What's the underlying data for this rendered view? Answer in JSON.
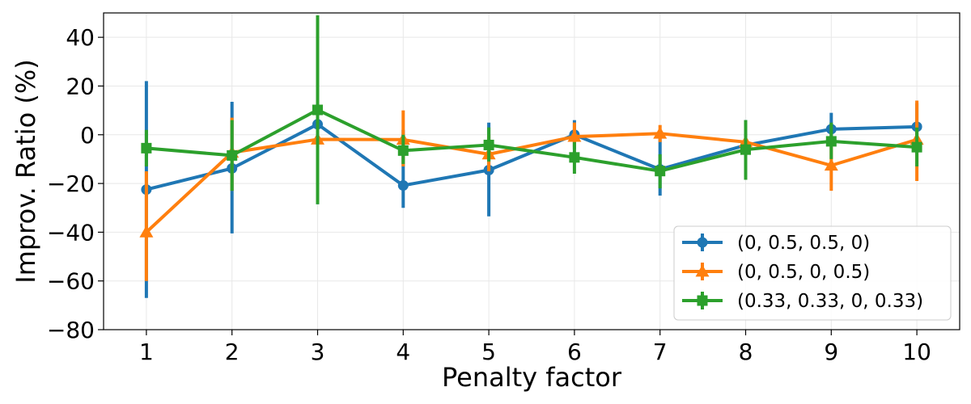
{
  "chart_data": {
    "type": "line",
    "xlabel": "Penalty factor",
    "ylabel": "Improv. Ratio (%)",
    "xlim": [
      0.5,
      10.5
    ],
    "ylim": [
      -80,
      50
    ],
    "x": [
      1,
      2,
      3,
      4,
      5,
      6,
      7,
      8,
      9,
      10
    ],
    "xticks": [
      "1",
      "2",
      "3",
      "4",
      "5",
      "6",
      "7",
      "8",
      "9",
      "10"
    ],
    "yticks": [
      40,
      20,
      0,
      -20,
      -40,
      -60,
      -80
    ],
    "ytick_labels": [
      "40",
      "20",
      "0",
      "−20",
      "−40",
      "−60",
      "−80"
    ],
    "grid": true,
    "legend_position": "lower right",
    "series": [
      {
        "name": "(0, 0.5, 0.5, 0)",
        "color": "#1f77b4",
        "marker": "circle",
        "values": [
          -22.5,
          -13.8,
          4.3,
          -20.8,
          -14.5,
          0.0,
          -14.2,
          -4.3,
          2.3,
          3.3
        ],
        "err_low": [
          -67,
          -40.5,
          -28.5,
          -30,
          -33.5,
          -6,
          -25,
          -18,
          -1,
          -6
        ],
        "err_high": [
          22,
          13.5,
          37,
          2,
          5,
          6,
          0,
          6,
          9,
          13
        ]
      },
      {
        "name": "(0, 0.5, 0, 0.5)",
        "color": "#ff7f0e",
        "marker": "triangle",
        "values": [
          -40,
          -7.3,
          -1.9,
          -2.0,
          -8.0,
          -0.8,
          0.5,
          -3.0,
          -12.6,
          -2.0
        ],
        "err_low": [
          -60,
          -23,
          -20,
          -13,
          -15,
          -5,
          -3,
          -10,
          -23,
          -19
        ],
        "err_high": [
          -15,
          7,
          12,
          10,
          0,
          5,
          4,
          2,
          -5,
          14
        ]
      },
      {
        "name": "(0.33, 0.33, 0, 0.33)",
        "color": "#2ca02c",
        "marker": "square",
        "values": [
          -5.5,
          -8.5,
          10.2,
          -6.5,
          -4.2,
          -9.3,
          -14.9,
          -6.1,
          -2.7,
          -5.1
        ],
        "err_low": [
          -13,
          -23,
          -28.5,
          -12,
          -11,
          -16,
          -22,
          -18.5,
          -10,
          -13
        ],
        "err_high": [
          2,
          6,
          49,
          0,
          3,
          -3,
          -8,
          6,
          5,
          3
        ]
      }
    ]
  }
}
